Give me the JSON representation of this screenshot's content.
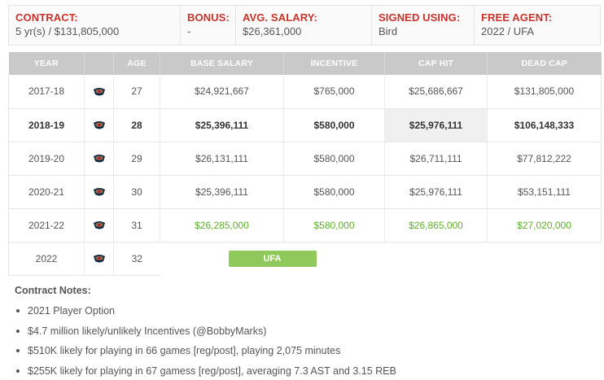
{
  "summary": [
    {
      "label": "CONTRACT:",
      "value": "5 yr(s) / $131,805,000"
    },
    {
      "label": "BONUS:",
      "value": "-"
    },
    {
      "label": "AVG. SALARY:",
      "value": "$26,361,000"
    },
    {
      "label": "SIGNED USING:",
      "value": "Bird"
    },
    {
      "label": "FREE AGENT:",
      "value": "2022 / UFA"
    }
  ],
  "table": {
    "headers": {
      "year": "YEAR",
      "team": "",
      "age": "AGE",
      "base": "BASE SALARY",
      "incentive": "INCENTIVE",
      "caphit": "CAP HIT",
      "deadcap": "DEAD CAP"
    },
    "rows": [
      {
        "year": "2017-18",
        "age": "27",
        "base": "$24,921,667",
        "incentive": "$765,000",
        "caphit": "$25,686,667",
        "deadcap": "$131,805,000"
      },
      {
        "year": "2018-19",
        "age": "28",
        "base": "$25,396,111",
        "incentive": "$580,000",
        "caphit": "$25,976,111",
        "deadcap": "$106,148,333"
      },
      {
        "year": "2019-20",
        "age": "29",
        "base": "$26,131,111",
        "incentive": "$580,000",
        "caphit": "$26,711,111",
        "deadcap": "$77,812,222"
      },
      {
        "year": "2020-21",
        "age": "30",
        "base": "$25,396,111",
        "incentive": "$580,000",
        "caphit": "$25,976,111",
        "deadcap": "$53,151,111"
      },
      {
        "year": "2021-22",
        "age": "31",
        "base": "$26,285,000",
        "incentive": "$580,000",
        "caphit": "$26,865,000",
        "deadcap": "$27,020,000"
      }
    ],
    "fa_row": {
      "year": "2022",
      "age": "32",
      "badge": "UFA"
    }
  },
  "notes": {
    "title": "Contract Notes:",
    "items": [
      "2021 Player Option",
      "$4.7 million likely/unlikely Incentives (@BobbyMarks)",
      "$510K likely for playing in 66 games [reg/post], playing 2,075 minutes",
      "$255K likely for playing in 67 gamess [reg/post], averaging 7.3 AST and 3.15 REB"
    ]
  },
  "icons": {
    "team_logo": "pelicans-logo-icon"
  },
  "colors": {
    "label_red": "#c8332b",
    "option_green": "#5fae2d",
    "ufa_badge": "#8fc95c",
    "header_gray": "#c9c9c9"
  }
}
